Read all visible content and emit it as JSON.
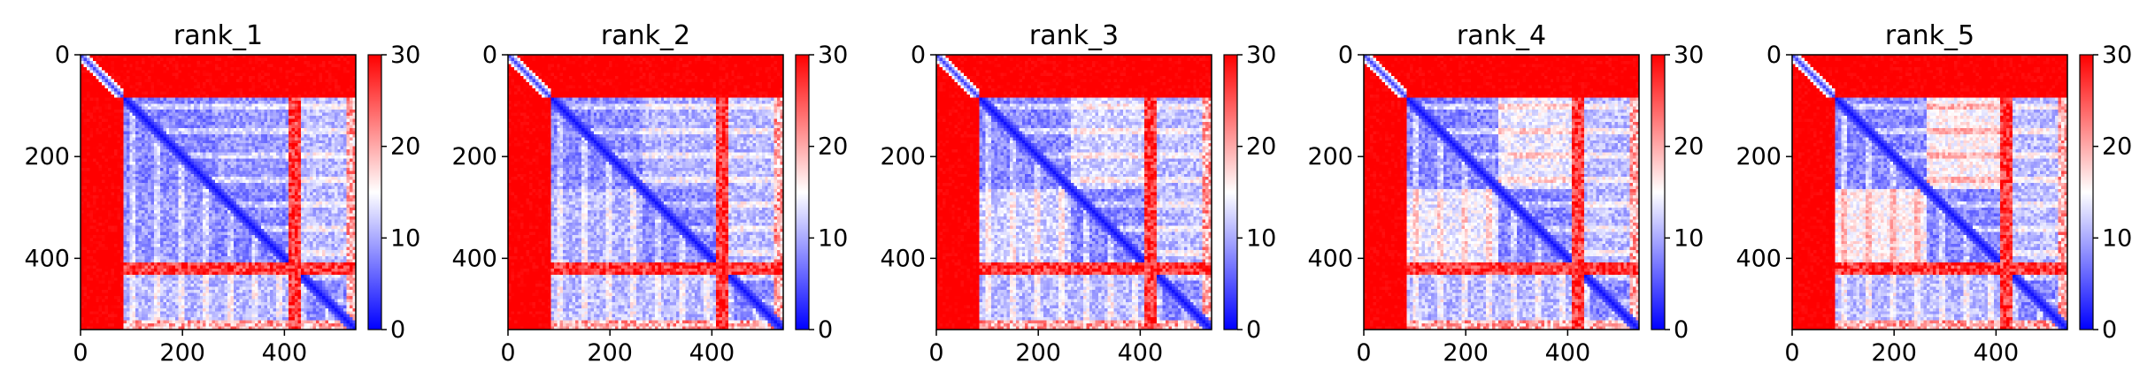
{
  "figure": {
    "colormap": "bwr",
    "colors": {
      "low": "#0000ff",
      "mid": "#ffffff",
      "high": "#ff0000"
    }
  },
  "chart_data": [
    {
      "type": "heatmap",
      "title": "rank_1",
      "x_ticks": [
        "0",
        "200",
        "400"
      ],
      "y_ticks": [
        "0",
        "200",
        "400"
      ],
      "x_range": [
        0,
        540
      ],
      "y_range": [
        0,
        540
      ],
      "colorbar": {
        "range": [
          0,
          30
        ],
        "ticks": [
          "0",
          "10",
          "20",
          "30"
        ]
      },
      "blocks": [
        0,
        85,
        265,
        410,
        430,
        540
      ]
    },
    {
      "type": "heatmap",
      "title": "rank_2",
      "x_ticks": [
        "0",
        "200",
        "400"
      ],
      "y_ticks": [
        "0",
        "200",
        "400"
      ],
      "x_range": [
        0,
        540
      ],
      "y_range": [
        0,
        540
      ],
      "colorbar": {
        "range": [
          0,
          30
        ],
        "ticks": [
          "0",
          "10",
          "20",
          "30"
        ]
      },
      "blocks": [
        0,
        85,
        265,
        410,
        430,
        540
      ]
    },
    {
      "type": "heatmap",
      "title": "rank_3",
      "x_ticks": [
        "0",
        "200",
        "400"
      ],
      "y_ticks": [
        "0",
        "200",
        "400"
      ],
      "x_range": [
        0,
        540
      ],
      "y_range": [
        0,
        540
      ],
      "colorbar": {
        "range": [
          0,
          30
        ],
        "ticks": [
          "0",
          "10",
          "20",
          "30"
        ]
      },
      "blocks": [
        0,
        85,
        265,
        410,
        430,
        540
      ]
    },
    {
      "type": "heatmap",
      "title": "rank_4",
      "x_ticks": [
        "0",
        "200",
        "400"
      ],
      "y_ticks": [
        "0",
        "200",
        "400"
      ],
      "x_range": [
        0,
        540
      ],
      "y_range": [
        0,
        540
      ],
      "colorbar": {
        "range": [
          0,
          30
        ],
        "ticks": [
          "0",
          "10",
          "20",
          "30"
        ]
      },
      "blocks": [
        0,
        85,
        265,
        410,
        430,
        540
      ]
    },
    {
      "type": "heatmap",
      "title": "rank_5",
      "x_ticks": [
        "0",
        "200",
        "400"
      ],
      "y_ticks": [
        "0",
        "200",
        "400"
      ],
      "x_range": [
        0,
        540
      ],
      "y_range": [
        0,
        540
      ],
      "colorbar": {
        "range": [
          0,
          30
        ],
        "ticks": [
          "0",
          "10",
          "20",
          "30"
        ]
      },
      "blocks": [
        0,
        85,
        265,
        410,
        430,
        540
      ]
    }
  ]
}
